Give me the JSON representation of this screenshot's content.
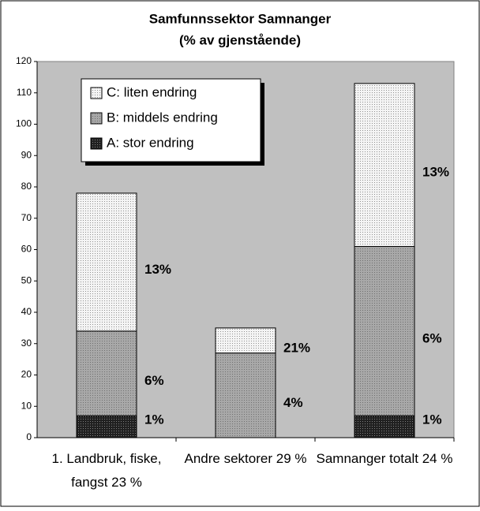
{
  "chart_data": {
    "type": "stacked_bar",
    "title": "Samfunnssektor Samnanger",
    "subtitle": "(% av gjenstående)",
    "categories": [
      "1. Landbruk, fiske, fangst 23 %",
      "Andre sektorer 29 %",
      "Samnanger totalt 24 %"
    ],
    "series": [
      {
        "name": "A: stor endring",
        "color": "#202020",
        "values": [
          7,
          0,
          7
        ],
        "data_labels": [
          "1%",
          null,
          "1%"
        ]
      },
      {
        "name": "B: middels endring",
        "color": "#a8a8a8",
        "values": [
          27,
          27,
          54
        ],
        "data_labels": [
          "6%",
          "4%",
          "6%"
        ]
      },
      {
        "name": "C: liten endring",
        "color": "#f0f0f0",
        "values": [
          44,
          8,
          52
        ],
        "data_labels": [
          "13%",
          "21%",
          "13%"
        ]
      }
    ],
    "ylim": [
      0,
      120
    ],
    "yticks": [
      0,
      10,
      20,
      30,
      40,
      50,
      60,
      70,
      80,
      90,
      100,
      110,
      120
    ],
    "legend": "upper left"
  }
}
